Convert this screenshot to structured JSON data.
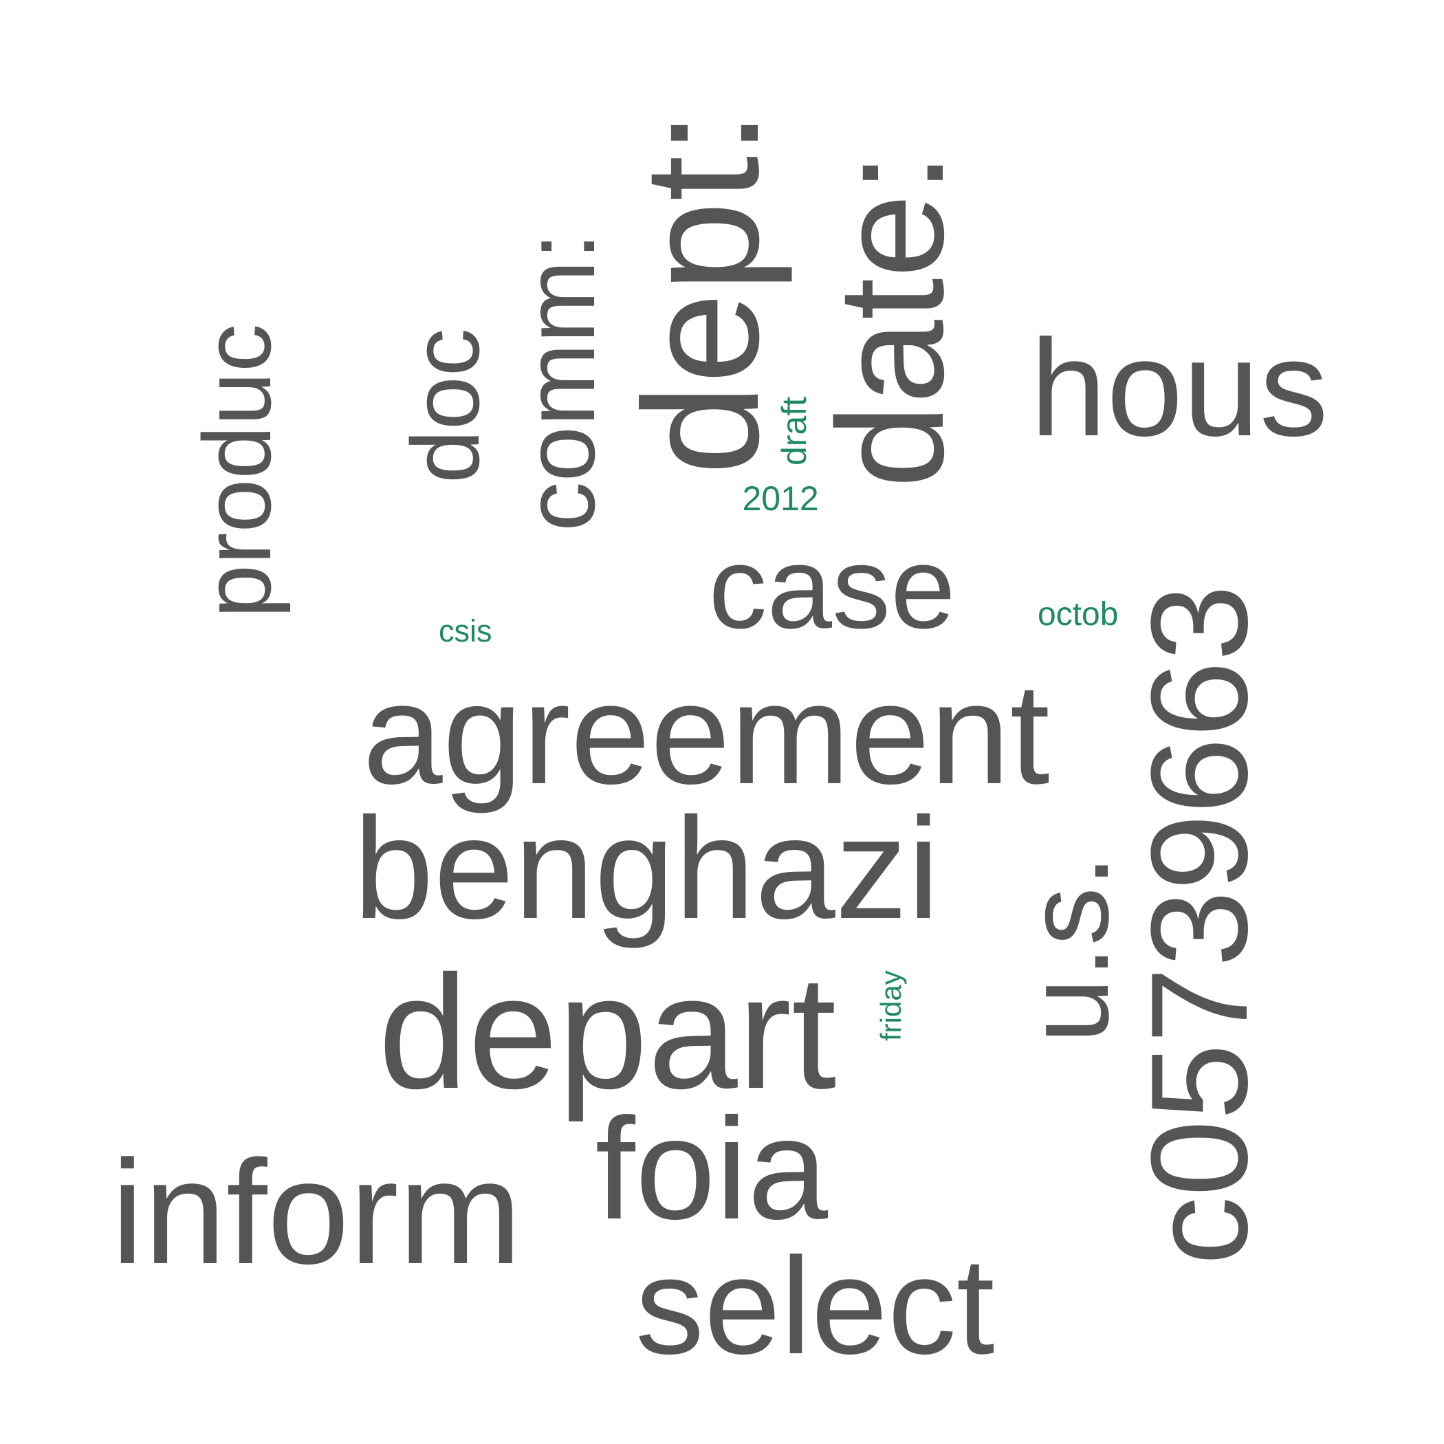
{
  "colors": {
    "primary": "#555555",
    "accent": "#1f8a61",
    "background": "#ffffff"
  },
  "words": [
    {
      "text": "agreement",
      "tier": "primary"
    },
    {
      "text": "benghazi",
      "tier": "primary"
    },
    {
      "text": "depart",
      "tier": "primary"
    },
    {
      "text": "inform",
      "tier": "primary"
    },
    {
      "text": "select",
      "tier": "primary"
    },
    {
      "text": "foia",
      "tier": "primary"
    },
    {
      "text": "case",
      "tier": "primary"
    },
    {
      "text": "hous",
      "tier": "primary"
    },
    {
      "text": "produc",
      "tier": "primary"
    },
    {
      "text": "doc",
      "tier": "primary"
    },
    {
      "text": "comm:",
      "tier": "primary"
    },
    {
      "text": "dept:",
      "tier": "primary"
    },
    {
      "text": "date:",
      "tier": "primary"
    },
    {
      "text": "c05739663",
      "tier": "primary"
    },
    {
      "text": "u.s.",
      "tier": "primary"
    },
    {
      "text": "2012",
      "tier": "accent"
    },
    {
      "text": "draft",
      "tier": "accent"
    },
    {
      "text": "csis",
      "tier": "accent"
    },
    {
      "text": "octob",
      "tier": "accent"
    },
    {
      "text": "friday",
      "tier": "accent"
    }
  ]
}
